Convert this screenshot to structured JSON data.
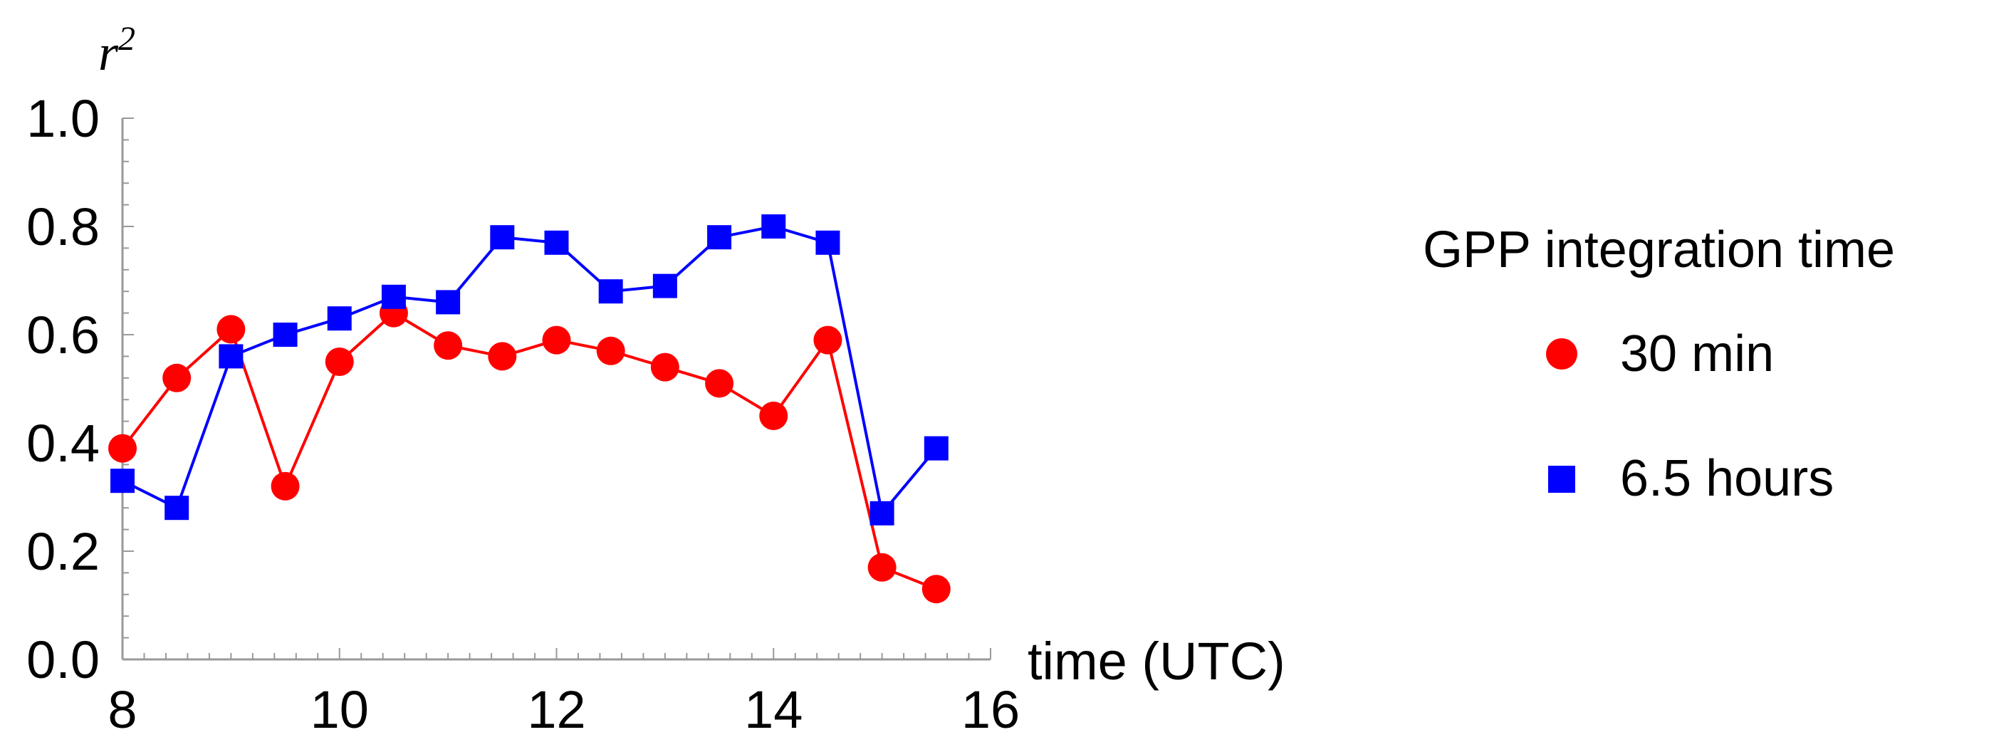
{
  "chart_data": {
    "type": "line",
    "title": "",
    "xlabel": "time (UTC)",
    "ylabel": "r",
    "ylabel_superscript": "2",
    "xlim": [
      8,
      16
    ],
    "ylim": [
      0.0,
      1.0
    ],
    "xticks": [
      "8",
      "10",
      "12",
      "14",
      "16"
    ],
    "yticks": [
      "0.0",
      "0.2",
      "0.4",
      "0.6",
      "0.8",
      "1.0"
    ],
    "grid": false,
    "legend": {
      "title": "GPP integration time",
      "placement": "right"
    },
    "series": [
      {
        "name": "30 min",
        "color": "#ff0000",
        "marker": "circle",
        "x": [
          8.0,
          8.5,
          9.0,
          9.5,
          10.0,
          10.5,
          11.0,
          11.5,
          12.0,
          12.5,
          13.0,
          13.5,
          14.0,
          14.5,
          15.0,
          15.5
        ],
        "y": [
          0.39,
          0.52,
          0.61,
          0.32,
          0.55,
          0.64,
          0.58,
          0.56,
          0.59,
          0.57,
          0.54,
          0.51,
          0.45,
          0.59,
          0.17,
          0.13
        ]
      },
      {
        "name": "6.5 hours",
        "color": "#0000ff",
        "marker": "square",
        "x": [
          8.0,
          8.5,
          9.0,
          9.5,
          10.0,
          10.5,
          11.0,
          11.5,
          12.0,
          12.5,
          13.0,
          13.5,
          14.0,
          14.5,
          15.0,
          15.5
        ],
        "y": [
          0.33,
          0.28,
          0.56,
          0.6,
          0.63,
          0.67,
          0.66,
          0.78,
          0.77,
          0.68,
          0.69,
          0.78,
          0.8,
          0.77,
          0.27,
          0.39
        ]
      }
    ]
  }
}
